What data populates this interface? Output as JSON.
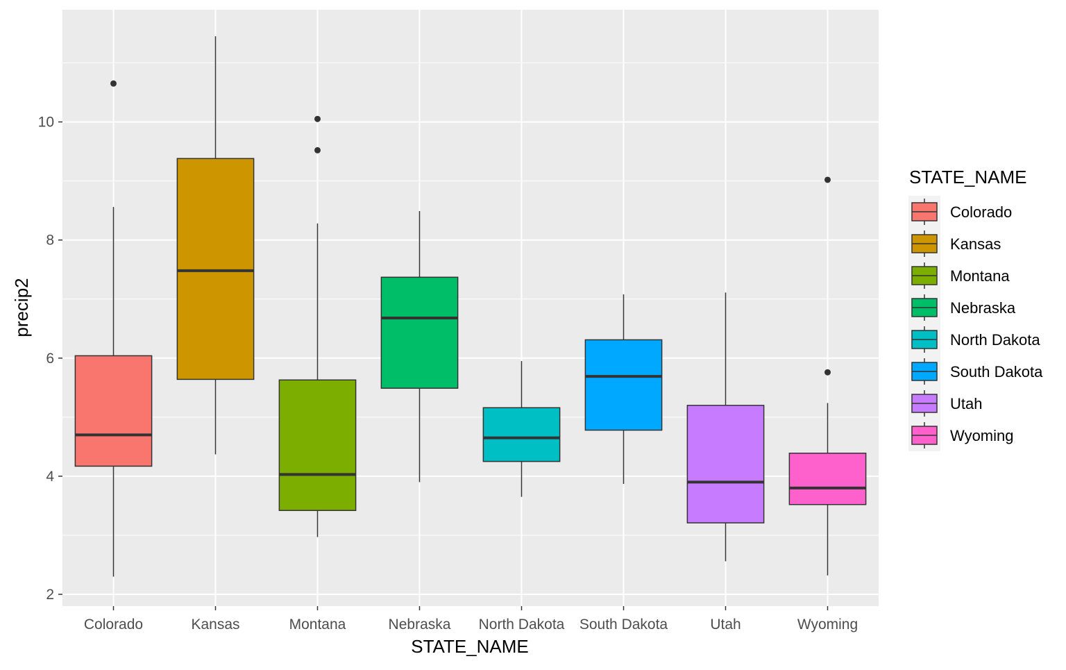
{
  "chart_data": {
    "type": "boxplot",
    "xlabel": "STATE_NAME",
    "ylabel": "precip2",
    "ylim": [
      1.8,
      11.9
    ],
    "y_ticks": [
      2,
      4,
      6,
      8,
      10
    ],
    "grid": true,
    "legend": {
      "title": "STATE_NAME",
      "placement": "right"
    },
    "categories": [
      "Colorado",
      "Kansas",
      "Montana",
      "Nebraska",
      "North Dakota",
      "South Dakota",
      "Utah",
      "Wyoming"
    ],
    "colors": [
      "#F8766D",
      "#CD9600",
      "#7CAE00",
      "#00BE67",
      "#00BFC4",
      "#00A9FF",
      "#C77CFF",
      "#FF61CC"
    ],
    "boxes": [
      {
        "name": "Colorado",
        "min": 2.3,
        "q1": 4.17,
        "median": 4.7,
        "q3": 6.04,
        "max": 8.56,
        "outliers": [
          10.65
        ]
      },
      {
        "name": "Kansas",
        "min": 4.37,
        "q1": 5.64,
        "median": 7.48,
        "q3": 9.38,
        "max": 11.45,
        "outliers": []
      },
      {
        "name": "Montana",
        "min": 2.97,
        "q1": 3.42,
        "median": 4.03,
        "q3": 5.63,
        "max": 8.28,
        "outliers": [
          9.52,
          10.05
        ]
      },
      {
        "name": "Nebraska",
        "min": 3.9,
        "q1": 5.49,
        "median": 6.68,
        "q3": 7.37,
        "max": 8.49,
        "outliers": []
      },
      {
        "name": "North Dakota",
        "min": 3.65,
        "q1": 4.25,
        "median": 4.65,
        "q3": 5.16,
        "max": 5.95,
        "outliers": []
      },
      {
        "name": "South Dakota",
        "min": 3.87,
        "q1": 4.78,
        "median": 5.69,
        "q3": 6.31,
        "max": 7.08,
        "outliers": []
      },
      {
        "name": "Utah",
        "min": 2.56,
        "q1": 3.21,
        "median": 3.9,
        "q3": 5.2,
        "max": 7.11,
        "outliers": []
      },
      {
        "name": "Wyoming",
        "min": 2.32,
        "q1": 3.52,
        "median": 3.8,
        "q3": 4.39,
        "max": 5.24,
        "outliers": [
          5.76,
          9.02
        ]
      }
    ]
  }
}
